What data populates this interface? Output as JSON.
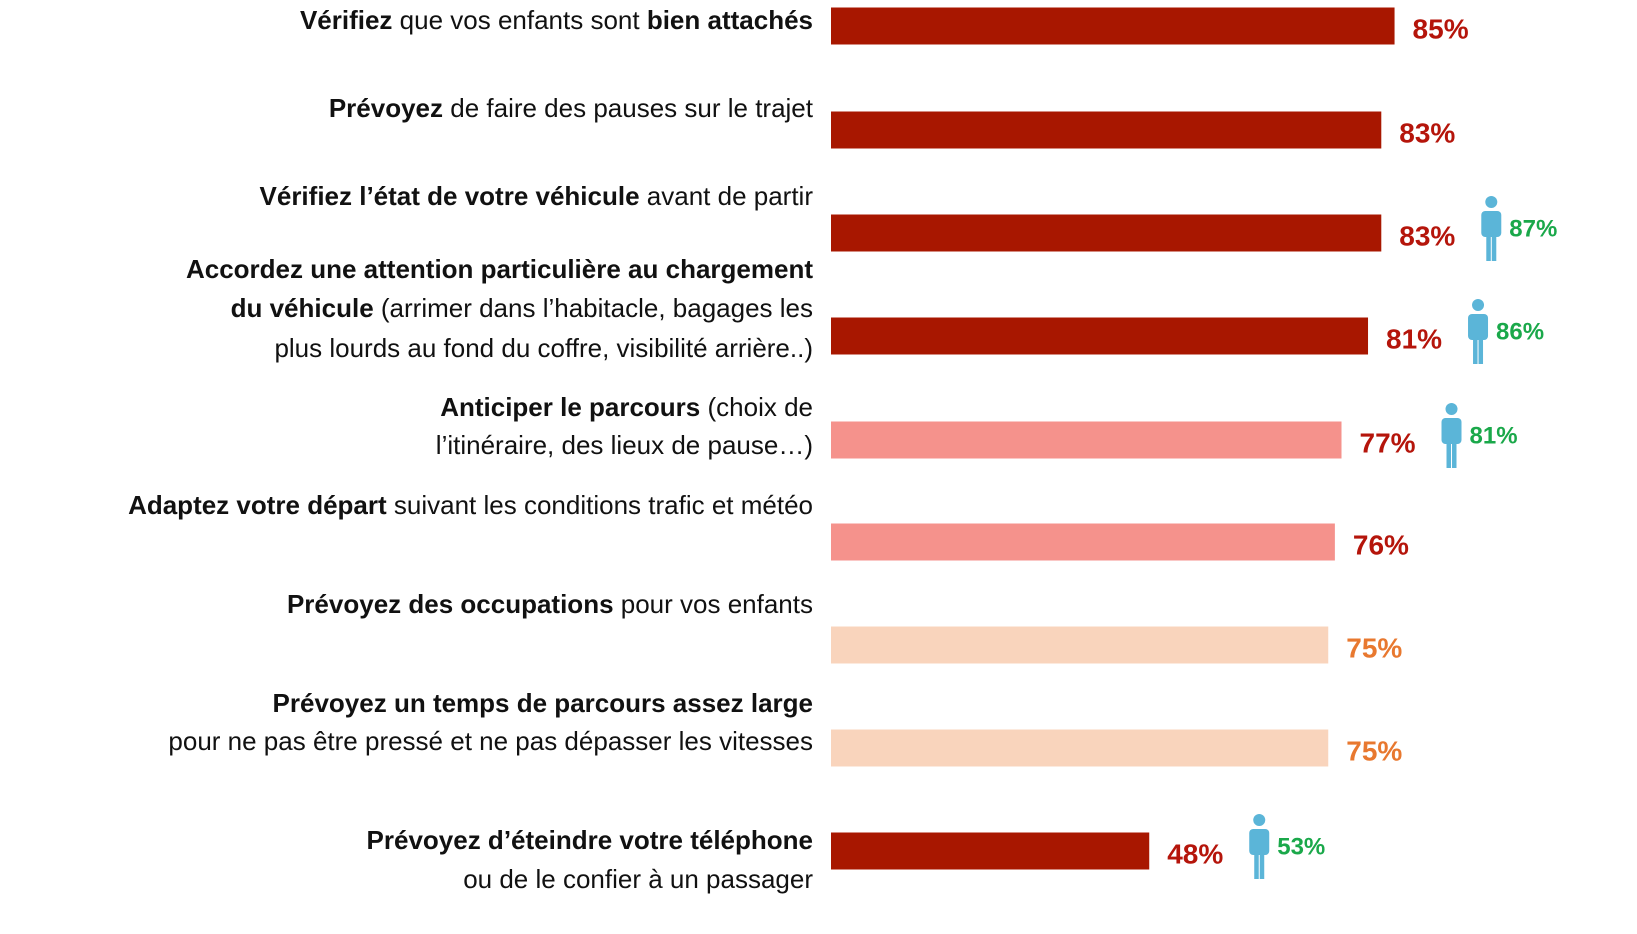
{
  "chart_data": {
    "type": "bar",
    "orientation": "horizontal",
    "xlim": [
      0,
      100
    ],
    "categories": [
      {
        "lines": [
          [
            {
              "text": "Vérifiez",
              "bold": true
            },
            {
              "text": " que vos enfants sont ",
              "bold": false
            },
            {
              "text": "bien attachés",
              "bold": true
            }
          ]
        ]
      },
      {
        "lines": [
          [
            {
              "text": "Prévoyez",
              "bold": true
            },
            {
              "text": " de faire des pauses sur le trajet",
              "bold": false
            }
          ]
        ]
      },
      {
        "lines": [
          [
            {
              "text": "Vérifiez l’état de votre véhicule",
              "bold": true
            },
            {
              "text": " avant de partir",
              "bold": false
            }
          ]
        ]
      },
      {
        "lines": [
          [
            {
              "text": "Accordez une attention particulière au chargement",
              "bold": true
            }
          ],
          [
            {
              "text": "du véhicule",
              "bold": true
            },
            {
              "text": " (arrimer dans l’habitacle, bagages les",
              "bold": false
            }
          ],
          [
            {
              "text": "plus lourds au fond du coffre, visibilité arrière..)",
              "bold": false
            }
          ]
        ]
      },
      {
        "lines": [
          [
            {
              "text": "Anticiper le parcours",
              "bold": true
            },
            {
              "text": " (choix de",
              "bold": false
            }
          ],
          [
            {
              "text": "l’itinéraire, des lieux de pause…)",
              "bold": false
            }
          ]
        ]
      },
      {
        "lines": [
          [
            {
              "text": "Adaptez votre départ",
              "bold": true
            },
            {
              "text": " suivant les conditions trafic et météo",
              "bold": false
            }
          ]
        ]
      },
      {
        "lines": [
          [
            {
              "text": "Prévoyez des occupations",
              "bold": true
            },
            {
              "text": " pour vos enfants",
              "bold": false
            }
          ]
        ]
      },
      {
        "lines": [
          [
            {
              "text": "Prévoyez un temps de parcours assez large",
              "bold": true
            }
          ],
          [
            {
              "text": "pour ne pas être pressé et ne pas dépasser les vitesses",
              "bold": false
            }
          ]
        ]
      },
      {
        "lines": [
          [
            {
              "text": "Prévoyez d’éteindre votre téléphone",
              "bold": true
            }
          ],
          [
            {
              "text": "ou de le confier à un passager",
              "bold": false
            }
          ]
        ]
      }
    ],
    "values": [
      85,
      83,
      83,
      81,
      77,
      76,
      75,
      75,
      48
    ],
    "value_labels": [
      "85%",
      "83%",
      "83%",
      "81%",
      "77%",
      "76%",
      "75%",
      "75%",
      "48%"
    ],
    "colors": [
      "#a81700",
      "#a81700",
      "#a81700",
      "#a81700",
      "#f5928c",
      "#f5928c",
      "#f9d4bc",
      "#f9d4bc",
      "#a81700"
    ],
    "label_colors": [
      "#b5150b",
      "#b5150b",
      "#b5150b",
      "#b5150b",
      "#b5150b",
      "#b5150b",
      "#e8782f",
      "#e8782f",
      "#b5150b"
    ],
    "secondary": {
      "values": [
        null,
        null,
        87,
        86,
        81,
        null,
        null,
        null,
        53
      ],
      "value_labels": [
        null,
        null,
        "87%",
        "86%",
        "81%",
        null,
        null,
        null,
        "53%"
      ],
      "color": "#1aa84a",
      "icon_color": "#5bb5d8"
    }
  }
}
